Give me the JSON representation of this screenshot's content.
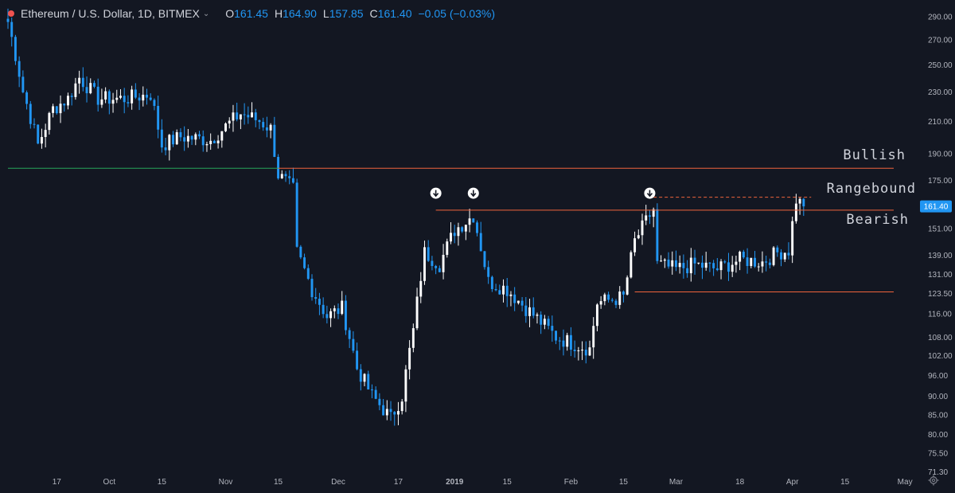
{
  "header": {
    "symbol_title": "Ethereum / U.S. Dollar, 1D, BITMEX",
    "o_label": "O",
    "o_value": "161.45",
    "h_label": "H",
    "h_value": "164.90",
    "l_label": "L",
    "l_value": "157.85",
    "c_label": "C",
    "c_value": "161.40",
    "change": "−0.05 (−0.03%)"
  },
  "colors": {
    "background": "#131722",
    "up": "#ffffff",
    "down": "#2196f3",
    "resistance": "#f0643c",
    "support": "#26a65b",
    "axis_text": "#b2b5be",
    "price_tag": "#2196f3"
  },
  "annotations": {
    "bullish": "Bullish",
    "rangebound": "Rangebound",
    "bearish": "Bearish"
  },
  "current_price_label": "161.40",
  "chart_data": {
    "type": "candlestick",
    "y_scale": "log",
    "ylim": [
      71.3,
      296
    ],
    "y_ticks": [
      290,
      270,
      250,
      230,
      210,
      190,
      175,
      151,
      139,
      131,
      123.5,
      116,
      108,
      102,
      96,
      90,
      85,
      80,
      75.5,
      71.3
    ],
    "y_tick_labels": [
      "290.00",
      "270.00",
      "250.00",
      "230.00",
      "210.00",
      "190.00",
      "175.00",
      "151.00",
      "139.00",
      "131.00",
      "123.50",
      "116.00",
      "108.00",
      "102.00",
      "96.00",
      "90.00",
      "85.00",
      "80.00",
      "75.50",
      "71.30"
    ],
    "x_start": "2018-09-04",
    "x_end": "2019-05-05",
    "x_ticks": [
      {
        "label": "17",
        "date": "2018-09-17"
      },
      {
        "label": "Oct",
        "date": "2018-10-01"
      },
      {
        "label": "15",
        "date": "2018-10-15"
      },
      {
        "label": "Nov",
        "date": "2018-11-01"
      },
      {
        "label": "15",
        "date": "2018-11-15"
      },
      {
        "label": "Dec",
        "date": "2018-12-01"
      },
      {
        "label": "17",
        "date": "2018-12-17"
      },
      {
        "label": "2019",
        "date": "2019-01-01"
      },
      {
        "label": "15",
        "date": "2019-01-15"
      },
      {
        "label": "Feb",
        "date": "2019-02-01"
      },
      {
        "label": "15",
        "date": "2019-02-15"
      },
      {
        "label": "Mar",
        "date": "2019-03-01"
      },
      {
        "label": "18",
        "date": "2019-03-18"
      },
      {
        "label": "Apr",
        "date": "2019-04-01"
      },
      {
        "label": "15",
        "date": "2019-04-15"
      },
      {
        "label": "May",
        "date": "2019-05-01"
      }
    ],
    "keypoints": [
      {
        "date": "2018-09-04",
        "close": 285
      },
      {
        "date": "2018-09-08",
        "close": 230
      },
      {
        "date": "2018-09-12",
        "close": 195
      },
      {
        "date": "2018-09-16",
        "close": 218
      },
      {
        "date": "2018-09-20",
        "close": 225
      },
      {
        "date": "2018-09-23",
        "close": 240
      },
      {
        "date": "2018-09-28",
        "close": 225
      },
      {
        "date": "2018-10-05",
        "close": 225
      },
      {
        "date": "2018-10-12",
        "close": 228
      },
      {
        "date": "2018-10-15",
        "close": 195
      },
      {
        "date": "2018-10-20",
        "close": 200
      },
      {
        "date": "2018-10-28",
        "close": 198
      },
      {
        "date": "2018-11-05",
        "close": 215
      },
      {
        "date": "2018-11-10",
        "close": 210
      },
      {
        "date": "2018-11-13",
        "close": 205
      },
      {
        "date": "2018-11-15",
        "close": 178
      },
      {
        "date": "2018-11-19",
        "close": 170
      },
      {
        "date": "2018-11-20",
        "close": 140
      },
      {
        "date": "2018-11-24",
        "close": 125
      },
      {
        "date": "2018-11-28",
        "close": 115
      },
      {
        "date": "2018-12-02",
        "close": 118
      },
      {
        "date": "2018-12-06",
        "close": 98
      },
      {
        "date": "2018-12-10",
        "close": 90
      },
      {
        "date": "2018-12-15",
        "close": 84
      },
      {
        "date": "2018-12-18",
        "close": 90
      },
      {
        "date": "2018-12-21",
        "close": 110
      },
      {
        "date": "2018-12-24",
        "close": 140
      },
      {
        "date": "2018-12-28",
        "close": 135
      },
      {
        "date": "2019-01-01",
        "close": 150
      },
      {
        "date": "2019-01-06",
        "close": 157
      },
      {
        "date": "2019-01-10",
        "close": 128
      },
      {
        "date": "2019-01-15",
        "close": 125
      },
      {
        "date": "2019-01-20",
        "close": 118
      },
      {
        "date": "2019-01-28",
        "close": 108
      },
      {
        "date": "2019-02-01",
        "close": 106
      },
      {
        "date": "2019-02-06",
        "close": 104
      },
      {
        "date": "2019-02-08",
        "close": 120
      },
      {
        "date": "2019-02-15",
        "close": 122
      },
      {
        "date": "2019-02-18",
        "close": 145
      },
      {
        "date": "2019-02-23",
        "close": 160
      },
      {
        "date": "2019-02-24",
        "close": 135
      },
      {
        "date": "2019-03-01",
        "close": 133
      },
      {
        "date": "2019-03-06",
        "close": 135
      },
      {
        "date": "2019-03-12",
        "close": 133
      },
      {
        "date": "2019-03-18",
        "close": 137
      },
      {
        "date": "2019-03-24",
        "close": 136
      },
      {
        "date": "2019-03-28",
        "close": 140
      },
      {
        "date": "2019-03-31",
        "close": 141
      },
      {
        "date": "2019-04-02",
        "close": 165
      },
      {
        "date": "2019-04-04",
        "close": 161.4
      }
    ],
    "levels": [
      {
        "name": "support",
        "price": 181.5,
        "from": "2018-09-04",
        "to": "2018-11-15"
      },
      {
        "name": "resistance-top",
        "price": 181.5,
        "from": "2018-11-15",
        "to": "2019-04-28"
      },
      {
        "name": "resistance-mid",
        "price": 159.5,
        "from": "2018-12-27",
        "to": "2019-04-28"
      },
      {
        "name": "range-low",
        "price": 124,
        "from": "2019-02-18",
        "to": "2019-04-28"
      },
      {
        "name": "range-dashed",
        "price": 166,
        "from": "2019-02-23",
        "to": "2019-04-06"
      }
    ],
    "markers": [
      {
        "date": "2018-12-27",
        "price": 164
      },
      {
        "date": "2019-01-06",
        "price": 164
      },
      {
        "date": "2019-02-22",
        "price": 164
      }
    ]
  }
}
